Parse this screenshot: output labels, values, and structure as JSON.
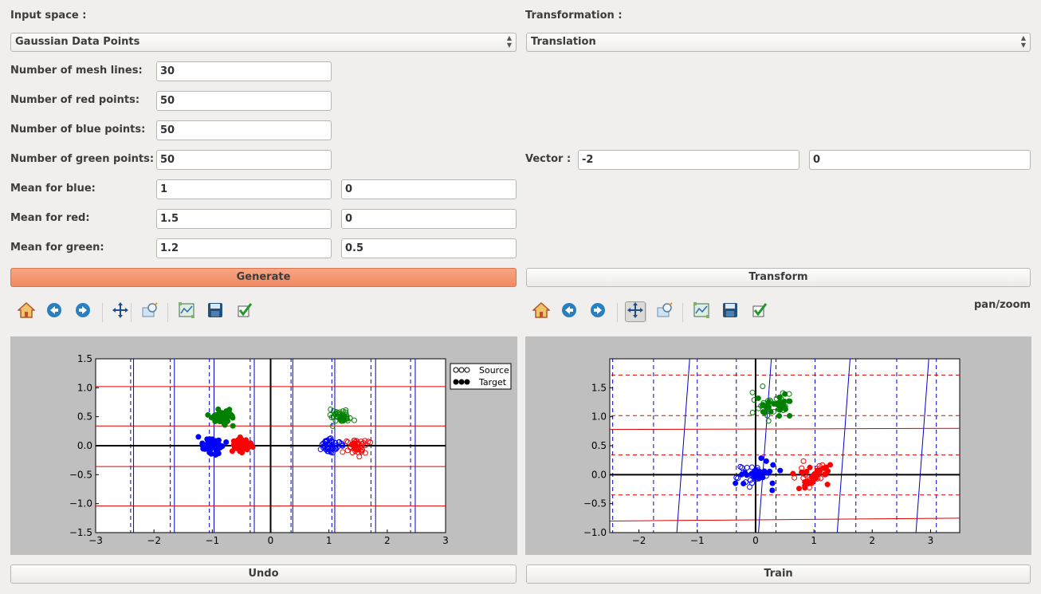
{
  "left": {
    "input_space_label": "Input space :",
    "input_space_value": "Gaussian Data Points",
    "rows": [
      {
        "label": "Number of mesh lines:",
        "v1": "30"
      },
      {
        "label": "Number of red points:",
        "v1": "50"
      },
      {
        "label": "Number of blue points:",
        "v1": "50"
      },
      {
        "label": "Number of green points:",
        "v1": "50"
      },
      {
        "label": "Mean for blue:",
        "v1": "1",
        "v2": "0"
      },
      {
        "label": "Mean for red:",
        "v1": "1.5",
        "v2": "0"
      },
      {
        "label": "Mean for green:",
        "v1": "1.2",
        "v2": "0.5"
      }
    ],
    "generate_label": "Generate",
    "undo_label": "Undo"
  },
  "right": {
    "transformation_label": "Transformation :",
    "transformation_value": "Translation",
    "vector_label": "Vector :",
    "vector_x": "-2",
    "vector_y": "0",
    "transform_label": "Transform",
    "train_label": "Train",
    "mode_text": "pan/zoom"
  },
  "toolbar_icons": [
    "home-icon",
    "back-icon",
    "forward-icon",
    "pan-icon",
    "zoom-icon",
    "subplots-icon",
    "save-icon",
    "check-icon"
  ],
  "chart_data": [
    {
      "type": "scatter",
      "xlim": [
        -3,
        3
      ],
      "ylim": [
        -1.5,
        1.5
      ],
      "xticks": [
        "−3",
        "−2",
        "−1",
        "0",
        "1",
        "2",
        "3"
      ],
      "yticks": [
        "1.5",
        "1.0",
        "0.5",
        "0.0",
        "−0.5",
        "−1.0",
        "−1.5"
      ],
      "legend": {
        "placement": "top-right",
        "entries": [
          "Source",
          "Target"
        ]
      },
      "series": [
        {
          "name": "Source",
          "color": "#0000ff",
          "center": [
            1.0,
            0.0
          ],
          "style": "open"
        },
        {
          "name": "Source",
          "color": "#ff0000",
          "center": [
            1.5,
            0.0
          ],
          "style": "open"
        },
        {
          "name": "Source",
          "color": "#008000",
          "center": [
            1.2,
            0.5
          ],
          "style": "open"
        },
        {
          "name": "Target",
          "color": "#0000ff",
          "center": [
            -1.0,
            0.0
          ],
          "style": "filled"
        },
        {
          "name": "Target",
          "color": "#ff0000",
          "center": [
            -0.5,
            0.0
          ],
          "style": "filled"
        },
        {
          "name": "Target",
          "color": "#008000",
          "center": [
            -0.8,
            0.5
          ],
          "style": "filled"
        }
      ]
    },
    {
      "type": "scatter",
      "xlim": [
        -2.5,
        3.5
      ],
      "ylim": [
        -1.0,
        2.0
      ],
      "xticks": [
        "−2",
        "−1",
        "0",
        "1",
        "2",
        "3"
      ],
      "yticks": [
        "1.5",
        "1.0",
        "0.5",
        "0.0",
        "−0.5",
        "−1.0"
      ],
      "series": [
        {
          "color": "#0000ff",
          "center": [
            0.0,
            0.0
          ]
        },
        {
          "color": "#ff0000",
          "center": [
            1.0,
            0.0
          ]
        },
        {
          "color": "#008000",
          "center": [
            0.3,
            1.2
          ]
        }
      ]
    }
  ]
}
